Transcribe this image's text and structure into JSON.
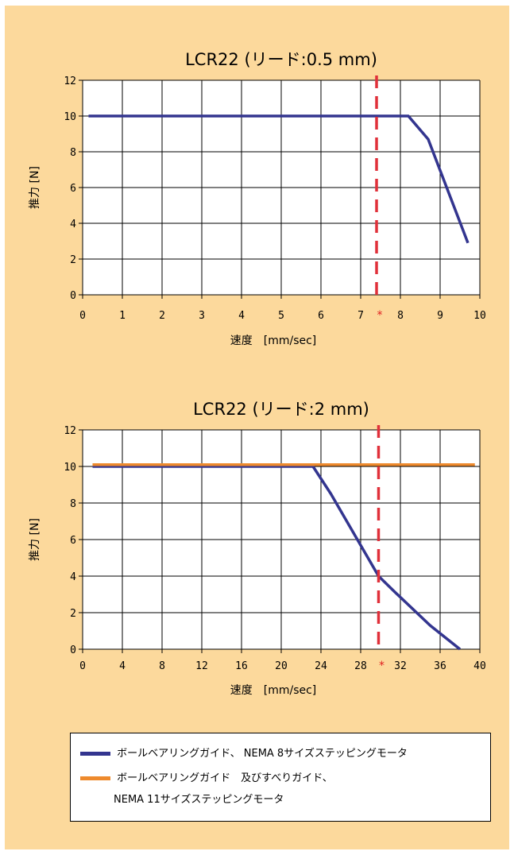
{
  "chart_data": [
    {
      "type": "line",
      "title": "LCR22 (リード:0.5 mm)",
      "xlabel": "速度　[mm/sec]",
      "ylabel": "推力 [N]",
      "xlim": [
        0,
        10
      ],
      "ylim": [
        0,
        12
      ],
      "x_ticks": [
        "0",
        "1",
        "2",
        "3",
        "4",
        "5",
        "6",
        "7",
        "8",
        "9",
        "10"
      ],
      "y_ticks": [
        "0",
        "2",
        "4",
        "6",
        "8",
        "10",
        "12"
      ],
      "grid": true,
      "marker": {
        "label": "*",
        "x": 7.4,
        "color": "#e0303a",
        "style": "dashed"
      },
      "series": [
        {
          "name": "ボールベアリングガイド、 NEMA 8サイズステッピングモータ",
          "color": "#33358f",
          "points": [
            [
              0.15,
              10
            ],
            [
              8.2,
              10
            ],
            [
              8.7,
              8.7
            ],
            [
              9.7,
              2.9
            ]
          ]
        }
      ]
    },
    {
      "type": "line",
      "title": "LCR22 (リード:2 mm)",
      "xlabel": "速度　[mm/sec]",
      "ylabel": "推力 [N]",
      "xlim": [
        0,
        40
      ],
      "ylim": [
        0,
        12
      ],
      "x_ticks": [
        "0",
        "4",
        "8",
        "12",
        "16",
        "20",
        "24",
        "28",
        "32",
        "36",
        "40"
      ],
      "y_ticks": [
        "0",
        "2",
        "4",
        "6",
        "8",
        "10",
        "12"
      ],
      "grid": true,
      "marker": {
        "label": "*",
        "x": 29.8,
        "color": "#e0303a",
        "style": "dashed"
      },
      "series": [
        {
          "name": "ボールベアリングガイド、 NEMA 8サイズステッピングモータ",
          "color": "#33358f",
          "points": [
            [
              1,
              10
            ],
            [
              23.2,
              10
            ],
            [
              25,
              8.5
            ],
            [
              29.8,
              4
            ],
            [
              31.5,
              3.1
            ],
            [
              35,
              1.3
            ],
            [
              38,
              0
            ]
          ]
        },
        {
          "name": "ボールベアリングガイド 及びすべりガイド、 NEMA 11サイズステッピングモータ",
          "color": "#ee8a2d",
          "points": [
            [
              1,
              10.1
            ],
            [
              39.5,
              10.1
            ]
          ]
        }
      ]
    }
  ],
  "legend": {
    "items": [
      {
        "label": "ボールベアリングガイド、 NEMA 8サイズステッピングモータ",
        "color": "#33358f"
      },
      {
        "label": "ボールベアリングガイド　及びすべりガイド、",
        "label2": "NEMA 11サイズステッピングモータ",
        "color": "#ee8a2d"
      }
    ]
  }
}
